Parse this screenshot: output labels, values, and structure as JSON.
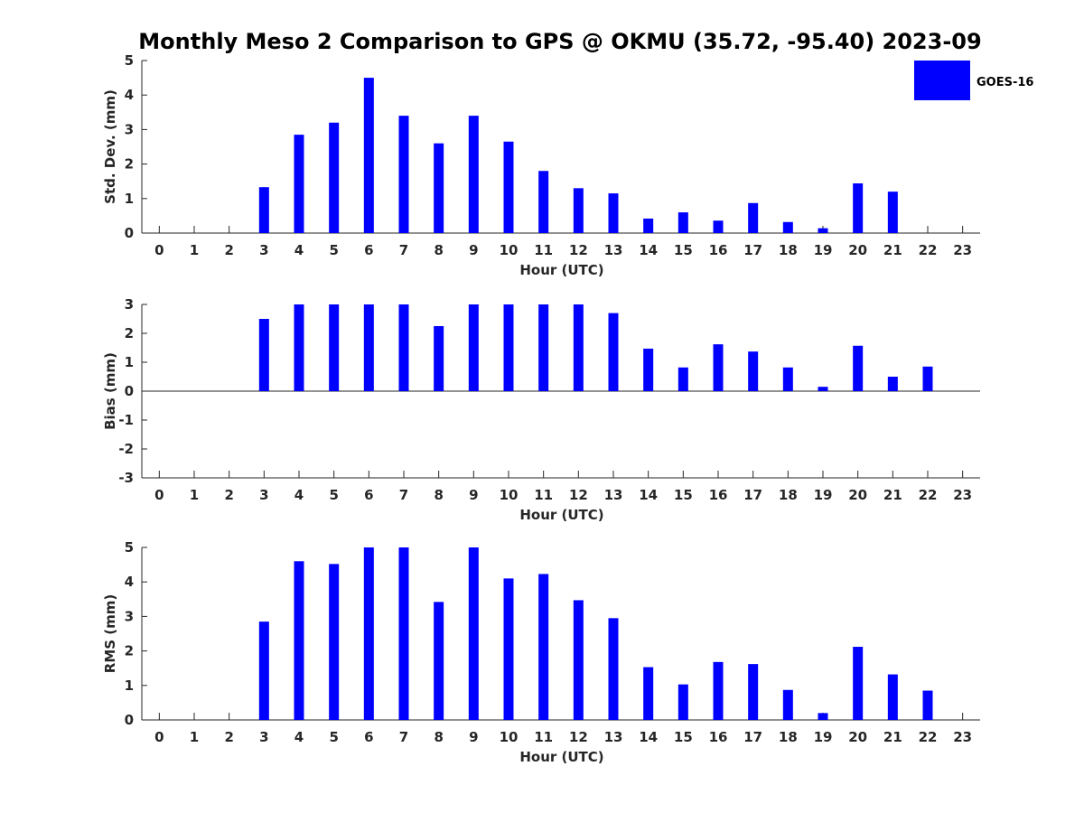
{
  "figure": {
    "title": "Monthly Meso 2 Comparison to GPS @ OKMU (35.72, -95.40) 2023-09"
  },
  "legend": {
    "label": "GOES-16",
    "color": "#0000ff",
    "placement": "top-right"
  },
  "chart_data": [
    {
      "type": "bar",
      "xlabel": "Hour (UTC)",
      "ylabel": "Std. Dev. (mm)",
      "ylim": [
        0,
        5
      ],
      "yticks": [
        0,
        1,
        2,
        3,
        4,
        5
      ],
      "x": [
        0,
        1,
        2,
        3,
        4,
        5,
        6,
        7,
        8,
        9,
        10,
        11,
        12,
        13,
        14,
        15,
        16,
        17,
        18,
        19,
        20,
        21,
        22,
        23
      ],
      "series": [
        {
          "name": "GOES-16",
          "color": "#0000ff",
          "values": [
            null,
            null,
            null,
            1.33,
            2.85,
            3.2,
            4.5,
            3.4,
            2.6,
            3.4,
            2.65,
            1.8,
            1.3,
            1.15,
            0.42,
            0.6,
            0.36,
            0.87,
            0.32,
            0.14,
            1.44,
            1.2,
            null,
            null
          ]
        }
      ]
    },
    {
      "type": "bar",
      "xlabel": "Hour (UTC)",
      "ylabel": "Bias (mm)",
      "ylim": [
        -3,
        3
      ],
      "yticks": [
        -3,
        -2,
        -1,
        0,
        1,
        2,
        3
      ],
      "baseline": 0,
      "x": [
        0,
        1,
        2,
        3,
        4,
        5,
        6,
        7,
        8,
        9,
        10,
        11,
        12,
        13,
        14,
        15,
        16,
        17,
        18,
        19,
        20,
        21,
        22,
        23
      ],
      "series": [
        {
          "name": "GOES-16",
          "color": "#0000ff",
          "values": [
            null,
            null,
            null,
            2.5,
            3,
            3,
            3,
            3,
            2.25,
            3,
            3,
            3,
            3,
            2.7,
            1.47,
            0.82,
            1.62,
            1.37,
            0.82,
            0.15,
            1.57,
            0.5,
            0.85,
            null
          ]
        }
      ]
    },
    {
      "type": "bar",
      "xlabel": "Hour (UTC)",
      "ylabel": "RMS (mm)",
      "ylim": [
        0,
        5
      ],
      "yticks": [
        0,
        1,
        2,
        3,
        4,
        5
      ],
      "x": [
        0,
        1,
        2,
        3,
        4,
        5,
        6,
        7,
        8,
        9,
        10,
        11,
        12,
        13,
        14,
        15,
        16,
        17,
        18,
        19,
        20,
        21,
        22,
        23
      ],
      "series": [
        {
          "name": "GOES-16",
          "color": "#0000ff",
          "values": [
            null,
            null,
            null,
            2.85,
            4.6,
            4.52,
            5,
            5,
            3.42,
            5,
            4.1,
            4.23,
            3.47,
            2.95,
            1.53,
            1.03,
            1.68,
            1.62,
            0.87,
            0.2,
            2.12,
            1.32,
            0.85,
            null
          ]
        }
      ]
    }
  ]
}
